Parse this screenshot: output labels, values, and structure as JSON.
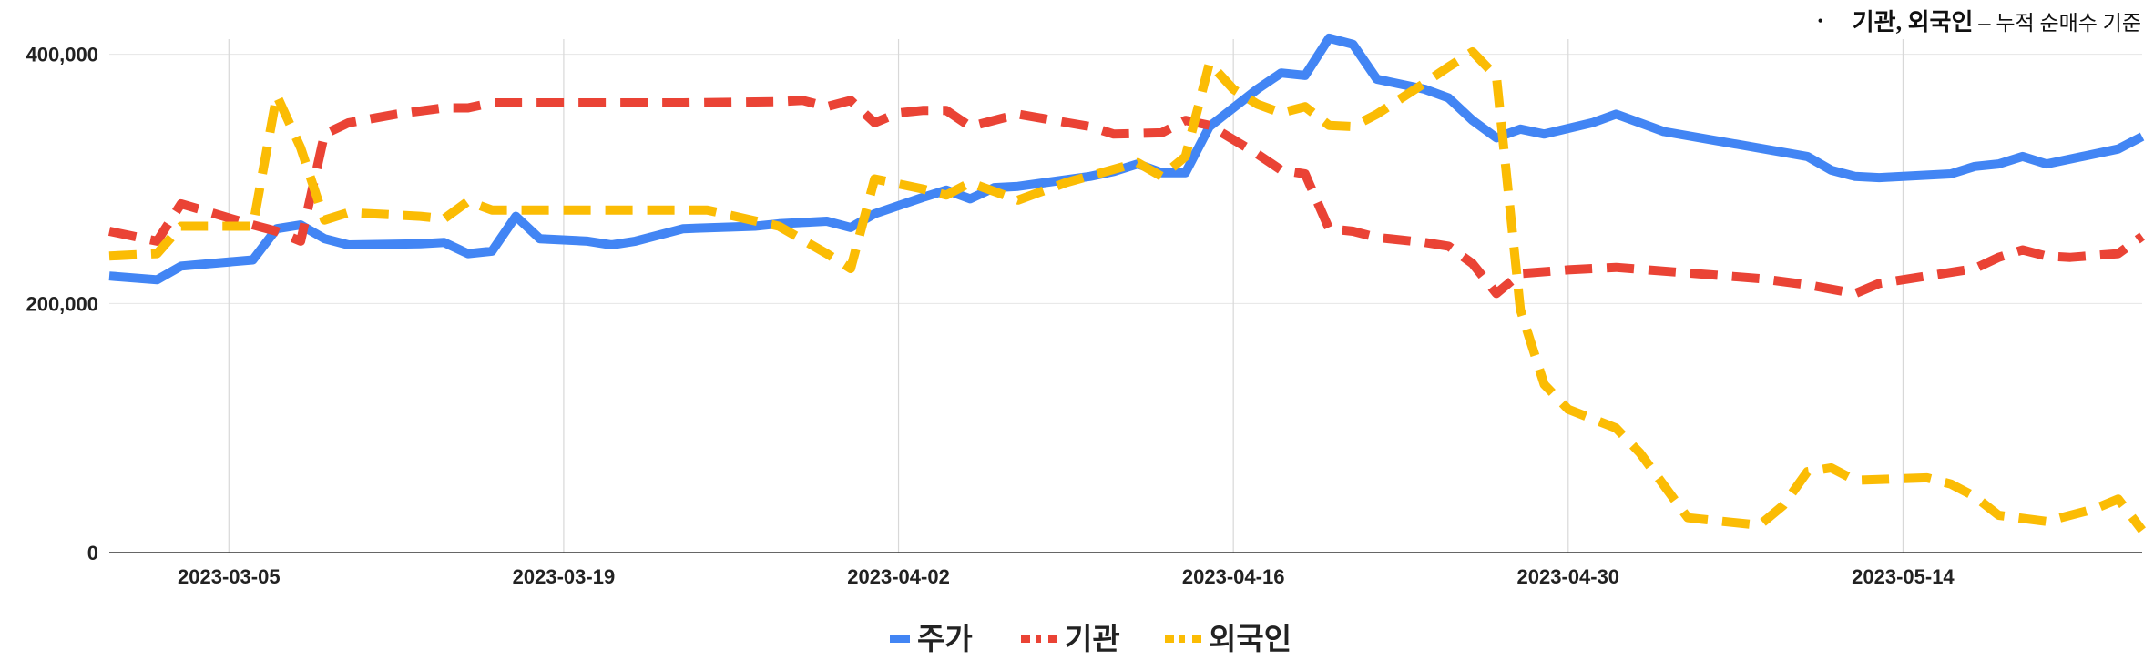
{
  "note": {
    "bullet": "•",
    "strong": "기관, 외국인",
    "dash": "–",
    "weak": "누적 순매수 기준"
  },
  "chart_data": {
    "type": "line",
    "xlabel": "",
    "ylabel": "",
    "x_ticks": [
      "2023-03-05",
      "2023-03-19",
      "2023-04-02",
      "2023-04-16",
      "2023-04-30",
      "2023-05-14"
    ],
    "y_ticks": [
      "400,000",
      "200,000",
      "0"
    ],
    "ylim": [
      0,
      410000
    ],
    "xlim": [
      "2023-02-28",
      "2023-05-24"
    ],
    "grid": true,
    "legend_position": "bottom",
    "series": [
      {
        "name": "주가",
        "color": "#4285f4",
        "dash": "solid",
        "points": [
          [
            "2023-02-28",
            222000
          ],
          [
            "2023-03-02",
            219000
          ],
          [
            "2023-03-03",
            230000
          ],
          [
            "2023-03-06",
            235000
          ],
          [
            "2023-03-07",
            260000
          ],
          [
            "2023-03-08",
            263000
          ],
          [
            "2023-03-09",
            252000
          ],
          [
            "2023-03-10",
            247000
          ],
          [
            "2023-03-13",
            248000
          ],
          [
            "2023-03-14",
            249000
          ],
          [
            "2023-03-15",
            240000
          ],
          [
            "2023-03-16",
            242000
          ],
          [
            "2023-03-17",
            270000
          ],
          [
            "2023-03-18",
            252000
          ],
          [
            "2023-03-20",
            250000
          ],
          [
            "2023-03-21",
            247000
          ],
          [
            "2023-03-22",
            250000
          ],
          [
            "2023-03-24",
            260000
          ],
          [
            "2023-03-27",
            262000
          ],
          [
            "2023-03-28",
            264000
          ],
          [
            "2023-03-29",
            265000
          ],
          [
            "2023-03-30",
            266000
          ],
          [
            "2023-03-31",
            261000
          ],
          [
            "2023-04-01",
            272000
          ],
          [
            "2023-04-03",
            285000
          ],
          [
            "2023-04-04",
            291000
          ],
          [
            "2023-04-05",
            284000
          ],
          [
            "2023-04-06",
            293000
          ],
          [
            "2023-04-07",
            294000
          ],
          [
            "2023-04-10",
            302000
          ],
          [
            "2023-04-11",
            306000
          ],
          [
            "2023-04-12",
            312000
          ],
          [
            "2023-04-13",
            305000
          ],
          [
            "2023-04-14",
            305000
          ],
          [
            "2023-04-15",
            342000
          ],
          [
            "2023-04-17",
            372000
          ],
          [
            "2023-04-18",
            385000
          ],
          [
            "2023-04-19",
            383000
          ],
          [
            "2023-04-20",
            413000
          ],
          [
            "2023-04-21",
            408000
          ],
          [
            "2023-04-22",
            380000
          ],
          [
            "2023-04-24",
            372000
          ],
          [
            "2023-04-25",
            365000
          ],
          [
            "2023-04-26",
            347000
          ],
          [
            "2023-04-27",
            333000
          ],
          [
            "2023-04-28",
            340000
          ],
          [
            "2023-04-29",
            336000
          ],
          [
            "2023-05-01",
            345000
          ],
          [
            "2023-05-02",
            352000
          ],
          [
            "2023-05-03",
            345000
          ],
          [
            "2023-05-04",
            338000
          ],
          [
            "2023-05-10",
            318000
          ],
          [
            "2023-05-11",
            307000
          ],
          [
            "2023-05-12",
            302000
          ],
          [
            "2023-05-13",
            301000
          ],
          [
            "2023-05-15",
            303000
          ],
          [
            "2023-05-16",
            304000
          ],
          [
            "2023-05-17",
            310000
          ],
          [
            "2023-05-18",
            312000
          ],
          [
            "2023-05-19",
            318000
          ],
          [
            "2023-05-20",
            312000
          ],
          [
            "2023-05-23",
            324000
          ],
          [
            "2023-05-24",
            334000
          ]
        ]
      },
      {
        "name": "기관",
        "color": "#ea4335",
        "dash": "dashed",
        "points": [
          [
            "2023-02-28",
            258000
          ],
          [
            "2023-03-02",
            250000
          ],
          [
            "2023-03-03",
            280000
          ],
          [
            "2023-03-06",
            263000
          ],
          [
            "2023-03-07",
            258000
          ],
          [
            "2023-03-08",
            250000
          ],
          [
            "2023-03-09",
            336000
          ],
          [
            "2023-03-10",
            345000
          ],
          [
            "2023-03-12",
            352000
          ],
          [
            "2023-03-14",
            357000
          ],
          [
            "2023-03-15",
            357000
          ],
          [
            "2023-03-16",
            361000
          ],
          [
            "2023-03-20",
            361000
          ],
          [
            "2023-03-24",
            361000
          ],
          [
            "2023-03-28",
            362000
          ],
          [
            "2023-03-29",
            363000
          ],
          [
            "2023-03-30",
            358000
          ],
          [
            "2023-03-31",
            363000
          ],
          [
            "2023-04-01",
            345000
          ],
          [
            "2023-04-02",
            353000
          ],
          [
            "2023-04-03",
            355000
          ],
          [
            "2023-04-04",
            355000
          ],
          [
            "2023-04-05",
            342000
          ],
          [
            "2023-04-07",
            352000
          ],
          [
            "2023-04-10",
            342000
          ],
          [
            "2023-04-11",
            336000
          ],
          [
            "2023-04-13",
            337000
          ],
          [
            "2023-04-14",
            347000
          ],
          [
            "2023-04-15",
            343000
          ],
          [
            "2023-04-17",
            320000
          ],
          [
            "2023-04-18",
            307000
          ],
          [
            "2023-04-19",
            304000
          ],
          [
            "2023-04-20",
            260000
          ],
          [
            "2023-04-21",
            258000
          ],
          [
            "2023-04-22",
            253000
          ],
          [
            "2023-04-24",
            249000
          ],
          [
            "2023-04-25",
            246000
          ],
          [
            "2023-04-26",
            232000
          ],
          [
            "2023-04-27",
            208000
          ],
          [
            "2023-04-28",
            224000
          ],
          [
            "2023-04-30",
            227000
          ],
          [
            "2023-05-02",
            229000
          ],
          [
            "2023-05-04",
            226000
          ],
          [
            "2023-05-06",
            223000
          ],
          [
            "2023-05-08",
            220000
          ],
          [
            "2023-05-10",
            215000
          ],
          [
            "2023-05-12",
            208000
          ],
          [
            "2023-05-13",
            216000
          ],
          [
            "2023-05-15",
            222000
          ],
          [
            "2023-05-17",
            228000
          ],
          [
            "2023-05-18",
            237000
          ],
          [
            "2023-05-19",
            243000
          ],
          [
            "2023-05-20",
            238000
          ],
          [
            "2023-05-21",
            237000
          ],
          [
            "2023-05-23",
            240000
          ],
          [
            "2023-05-24",
            254000
          ]
        ]
      },
      {
        "name": "외국인",
        "color": "#fbbc04",
        "dash": "dashed",
        "points": [
          [
            "2023-02-28",
            238000
          ],
          [
            "2023-03-02",
            240000
          ],
          [
            "2023-03-03",
            262000
          ],
          [
            "2023-03-06",
            262000
          ],
          [
            "2023-03-07",
            367000
          ],
          [
            "2023-03-08",
            325000
          ],
          [
            "2023-03-09",
            267000
          ],
          [
            "2023-03-10",
            273000
          ],
          [
            "2023-03-13",
            270000
          ],
          [
            "2023-03-14",
            268000
          ],
          [
            "2023-03-15",
            282000
          ],
          [
            "2023-03-16",
            275000
          ],
          [
            "2023-03-19",
            275000
          ],
          [
            "2023-03-23",
            275000
          ],
          [
            "2023-03-25",
            275000
          ],
          [
            "2023-03-28",
            262000
          ],
          [
            "2023-03-30",
            240000
          ],
          [
            "2023-03-31",
            228000
          ],
          [
            "2023-04-01",
            300000
          ],
          [
            "2023-04-03",
            292000
          ],
          [
            "2023-04-04",
            287000
          ],
          [
            "2023-04-05",
            297000
          ],
          [
            "2023-04-07",
            283000
          ],
          [
            "2023-04-09",
            297000
          ],
          [
            "2023-04-12",
            313000
          ],
          [
            "2023-04-13",
            302000
          ],
          [
            "2023-04-14",
            318000
          ],
          [
            "2023-04-15",
            393000
          ],
          [
            "2023-04-16",
            372000
          ],
          [
            "2023-04-17",
            360000
          ],
          [
            "2023-04-18",
            353000
          ],
          [
            "2023-04-19",
            358000
          ],
          [
            "2023-04-20",
            343000
          ],
          [
            "2023-04-21",
            342000
          ],
          [
            "2023-04-22",
            352000
          ],
          [
            "2023-04-24",
            377000
          ],
          [
            "2023-04-25",
            390000
          ],
          [
            "2023-04-26",
            402000
          ],
          [
            "2023-04-27",
            382000
          ],
          [
            "2023-04-28",
            195000
          ],
          [
            "2023-04-29",
            135000
          ],
          [
            "2023-04-30",
            115000
          ],
          [
            "2023-05-02",
            100000
          ],
          [
            "2023-05-03",
            80000
          ],
          [
            "2023-05-05",
            28000
          ],
          [
            "2023-05-07",
            24000
          ],
          [
            "2023-05-08",
            22000
          ],
          [
            "2023-05-09",
            38000
          ],
          [
            "2023-05-10",
            65000
          ],
          [
            "2023-05-11",
            68000
          ],
          [
            "2023-05-12",
            58000
          ],
          [
            "2023-05-15",
            60000
          ],
          [
            "2023-05-16",
            55000
          ],
          [
            "2023-05-17",
            45000
          ],
          [
            "2023-05-18",
            30000
          ],
          [
            "2023-05-20",
            25000
          ],
          [
            "2023-05-22",
            35000
          ],
          [
            "2023-05-23",
            43000
          ],
          [
            "2023-05-24",
            18000
          ]
        ]
      }
    ]
  }
}
